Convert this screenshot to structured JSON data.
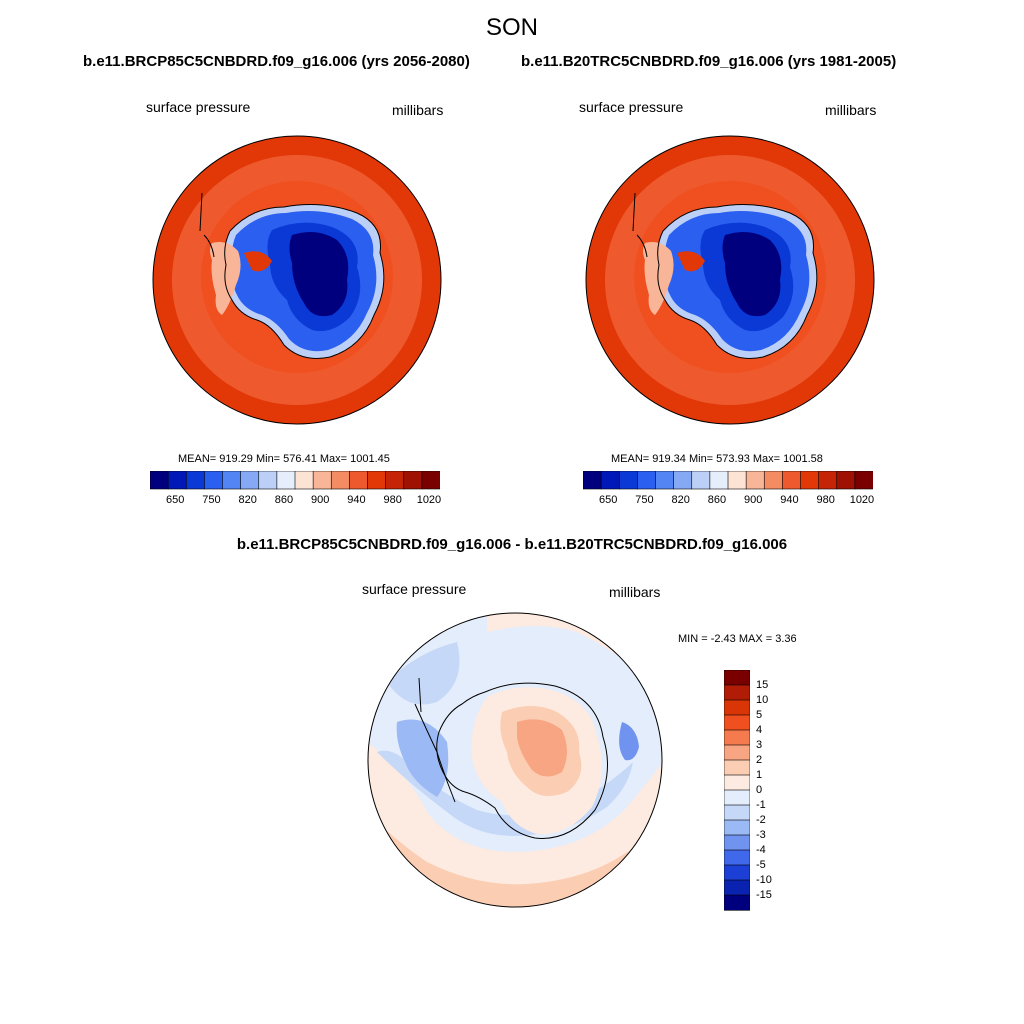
{
  "figure": {
    "title": "SON",
    "case_left": "b.e11.BRCP85C5CNBDRD.f09_g16.006 (yrs 2056-2080)",
    "case_right": "b.e11.B20TRC5CNBDRD.f09_g16.006 (yrs 1981-2005)",
    "diff_title": "b.e11.BRCP85C5CNBDRD.f09_g16.006 - b.e11.B20TRC5CNBDRD.f09_g16.006"
  },
  "panels": [
    {
      "variable": "surface pressure",
      "units": "millibars",
      "stats": "MEAN= 919.29  Min= 576.41  Max= 1001.45",
      "mean": 919.29,
      "min": 576.41,
      "max": 1001.45
    },
    {
      "variable": "surface pressure",
      "units": "millibars",
      "stats": "MEAN= 919.34  Min= 573.93  Max= 1001.58",
      "mean": 919.34,
      "min": 573.93,
      "max": 1001.58
    }
  ],
  "diff_panel": {
    "variable": "surface pressure",
    "units": "millibars",
    "stats": "MIN =  -2.43 MAX =   3.36",
    "min": -2.43,
    "max": 3.36
  },
  "colorbar_abs": {
    "labels": [
      "650",
      "750",
      "820",
      "860",
      "900",
      "940",
      "980",
      "1020"
    ],
    "colors": [
      "#00007f",
      "#0018b8",
      "#0a39d6",
      "#2b5ff0",
      "#5385f5",
      "#86a9f5",
      "#bcd0f7",
      "#e6eefc",
      "#fde3d3",
      "#f8b598",
      "#f38b63",
      "#ee5a2e",
      "#e23808",
      "#c52406",
      "#9e1103",
      "#7a0000"
    ]
  },
  "colorbar_diff": {
    "labels": [
      "15",
      "10",
      "5",
      "4",
      "3",
      "2",
      "1",
      "0",
      "-1",
      "-2",
      "-3",
      "-4",
      "-5",
      "-10",
      "-15"
    ],
    "colors": [
      "#7a0000",
      "#b01c05",
      "#d93506",
      "#f05020",
      "#f57a4d",
      "#f8a583",
      "#fbcdb2",
      "#fdeae0",
      "#e4edfb",
      "#c6d8f8",
      "#9bb9f4",
      "#6f93ef",
      "#4068ea",
      "#1c3fd6",
      "#0a22b0",
      "#00007f"
    ]
  }
}
